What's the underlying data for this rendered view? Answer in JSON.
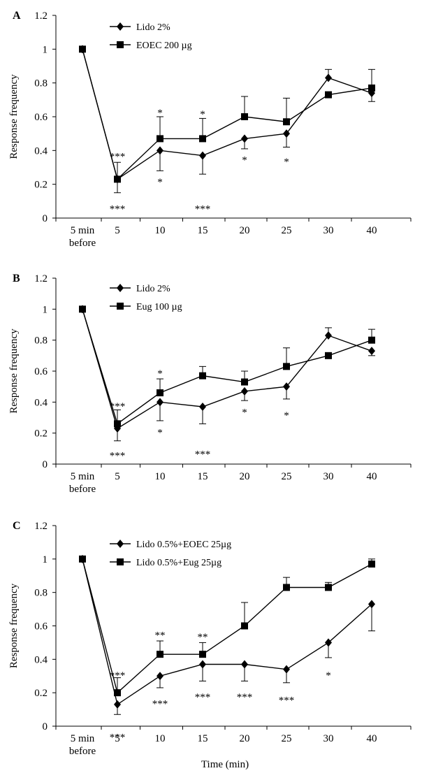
{
  "figure": {
    "xlabel": "Time (min)"
  },
  "chart_data": [
    {
      "panel": "A",
      "type": "line",
      "ylabel": "Response frequency",
      "categories": [
        "5 min before",
        "5",
        "10",
        "15",
        "20",
        "25",
        "30",
        "40"
      ],
      "category_lines": [
        [
          "5 min",
          "before"
        ],
        [
          "5"
        ],
        [
          "10"
        ],
        [
          "15"
        ],
        [
          "20"
        ],
        [
          "25"
        ],
        [
          "30"
        ],
        [
          "40"
        ]
      ],
      "yticks": [
        "0",
        "0.2",
        "0.4",
        "0.6",
        "0.8",
        "1",
        "1.2"
      ],
      "ylim": [
        0,
        1.2
      ],
      "grid": false,
      "legend_position": "top-left",
      "series": [
        {
          "name": "Lido 2%",
          "marker": "diamond",
          "values": [
            1.0,
            0.23,
            0.4,
            0.37,
            0.47,
            0.5,
            0.83,
            0.74
          ],
          "errors": [
            0,
            0.1,
            0.12,
            0.11,
            0.06,
            0.08,
            0.05,
            0.05
          ],
          "error_dir": [
            "up",
            "up",
            "down",
            "down",
            "down",
            "down",
            "up",
            "down"
          ]
        },
        {
          "name": "EOEC 200 µg",
          "marker": "square",
          "values": [
            1.0,
            0.23,
            0.47,
            0.47,
            0.6,
            0.57,
            0.73,
            0.77
          ],
          "errors": [
            0,
            0.08,
            0.13,
            0.12,
            0.12,
            0.14,
            0,
            0.11
          ],
          "error_dir": [
            "down",
            "down",
            "up",
            "up",
            "up",
            "up",
            "up",
            "up"
          ]
        }
      ],
      "annotations": [
        {
          "category": 1,
          "y": 0.37,
          "text": "***"
        },
        {
          "category": 1,
          "y": 0.06,
          "text": "***"
        },
        {
          "category": 2,
          "y": 0.63,
          "text": "*"
        },
        {
          "category": 2,
          "y": 0.22,
          "text": "*"
        },
        {
          "category": 3,
          "y": 0.62,
          "text": "*"
        },
        {
          "category": 3,
          "y": 0.06,
          "text": "***"
        },
        {
          "category": 4,
          "y": 0.35,
          "text": "*"
        },
        {
          "category": 5,
          "y": 0.34,
          "text": "*"
        }
      ]
    },
    {
      "panel": "B",
      "type": "line",
      "ylabel": "Response frequency",
      "categories": [
        "5 min before",
        "5",
        "10",
        "15",
        "20",
        "25",
        "30",
        "40"
      ],
      "category_lines": [
        [
          "5 min",
          "before"
        ],
        [
          "5"
        ],
        [
          "10"
        ],
        [
          "15"
        ],
        [
          "20"
        ],
        [
          "25"
        ],
        [
          "30"
        ],
        [
          "40"
        ]
      ],
      "yticks": [
        "0",
        "0.2",
        "0.4",
        "0.6",
        "0.8",
        "1",
        "1.2"
      ],
      "ylim": [
        0,
        1.2
      ],
      "grid": false,
      "legend_position": "top-left",
      "series": [
        {
          "name": "Lido 2%",
          "marker": "diamond",
          "values": [
            1.0,
            0.23,
            0.4,
            0.37,
            0.47,
            0.5,
            0.83,
            0.73
          ],
          "errors": [
            0,
            0.08,
            0.12,
            0.11,
            0.06,
            0.08,
            0.05,
            0.03
          ],
          "error_dir": [
            "up",
            "down",
            "down",
            "down",
            "down",
            "down",
            "up",
            "down"
          ]
        },
        {
          "name": "Eug 100 µg",
          "marker": "square",
          "values": [
            1.0,
            0.26,
            0.46,
            0.57,
            0.53,
            0.63,
            0.7,
            0.8
          ],
          "errors": [
            0,
            0.09,
            0.09,
            0.06,
            0.07,
            0.12,
            0,
            0.07
          ],
          "error_dir": [
            "down",
            "up",
            "up",
            "up",
            "up",
            "up",
            "up",
            "up"
          ]
        }
      ],
      "annotations": [
        {
          "category": 1,
          "y": 0.38,
          "text": "***"
        },
        {
          "category": 1,
          "y": 0.06,
          "text": "***"
        },
        {
          "category": 2,
          "y": 0.59,
          "text": "*"
        },
        {
          "category": 2,
          "y": 0.21,
          "text": "*"
        },
        {
          "category": 3,
          "y": 0.07,
          "text": "***"
        },
        {
          "category": 4,
          "y": 0.34,
          "text": "*"
        },
        {
          "category": 5,
          "y": 0.32,
          "text": "*"
        }
      ]
    },
    {
      "panel": "C",
      "type": "line",
      "ylabel": "Response frequency",
      "categories": [
        "5 min before",
        "5",
        "10",
        "15",
        "20",
        "25",
        "30",
        "40"
      ],
      "category_lines": [
        [
          "5 min",
          "before"
        ],
        [
          "5"
        ],
        [
          "10"
        ],
        [
          "15"
        ],
        [
          "20"
        ],
        [
          "25"
        ],
        [
          "30"
        ],
        [
          "40"
        ]
      ],
      "yticks": [
        "0",
        "0.2",
        "0.4",
        "0.6",
        "0.8",
        "1",
        "1.2"
      ],
      "ylim": [
        0,
        1.2
      ],
      "grid": false,
      "legend_position": "top-left",
      "series": [
        {
          "name": "Lido 0.5%+EOEC 25µg",
          "marker": "diamond",
          "values": [
            1.0,
            0.13,
            0.3,
            0.37,
            0.37,
            0.34,
            0.5,
            0.73
          ],
          "errors": [
            0,
            0.06,
            0.07,
            0.1,
            0.1,
            0.08,
            0.09,
            0.16
          ],
          "error_dir": [
            "up",
            "down",
            "down",
            "down",
            "down",
            "down",
            "down",
            "down"
          ]
        },
        {
          "name": "Lido 0.5%+Eug 25µg",
          "marker": "square",
          "values": [
            1.0,
            0.2,
            0.43,
            0.43,
            0.6,
            0.83,
            0.83,
            0.97
          ],
          "errors": [
            0,
            0.09,
            0.08,
            0.07,
            0.14,
            0.06,
            0.03,
            0.03
          ],
          "error_dir": [
            "down",
            "up",
            "up",
            "up",
            "up",
            "up",
            "up",
            "up"
          ]
        }
      ],
      "annotations": [
        {
          "category": 1,
          "y": 0.31,
          "text": "***"
        },
        {
          "category": 1,
          "y": -0.06,
          "text": "***"
        },
        {
          "category": 2,
          "y": 0.55,
          "text": "**"
        },
        {
          "category": 2,
          "y": 0.14,
          "text": "***"
        },
        {
          "category": 3,
          "y": 0.54,
          "text": "**"
        },
        {
          "category": 3,
          "y": 0.18,
          "text": "***"
        },
        {
          "category": 4,
          "y": 0.18,
          "text": "***"
        },
        {
          "category": 5,
          "y": 0.16,
          "text": "***"
        },
        {
          "category": 6,
          "y": 0.31,
          "text": "*"
        }
      ]
    }
  ]
}
